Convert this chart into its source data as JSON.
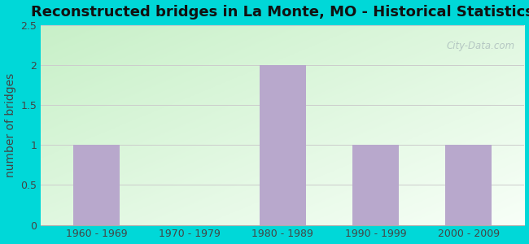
{
  "title": "Reconstructed bridges in La Monte, MO - Historical Statistics",
  "categories": [
    "1960 - 1969",
    "1970 - 1979",
    "1980 - 1989",
    "1990 - 1999",
    "2000 - 2009"
  ],
  "values": [
    1,
    0,
    2,
    1,
    1
  ],
  "bar_color": "#b8a8cc",
  "ylabel": "number of bridges",
  "ylim": [
    0,
    2.5
  ],
  "yticks": [
    0,
    0.5,
    1,
    1.5,
    2,
    2.5
  ],
  "background_outer": "#00d8d8",
  "grid_color": "#cccccc",
  "title_fontsize": 13,
  "axis_fontsize": 10,
  "tick_fontsize": 9,
  "watermark": "City-Data.com"
}
